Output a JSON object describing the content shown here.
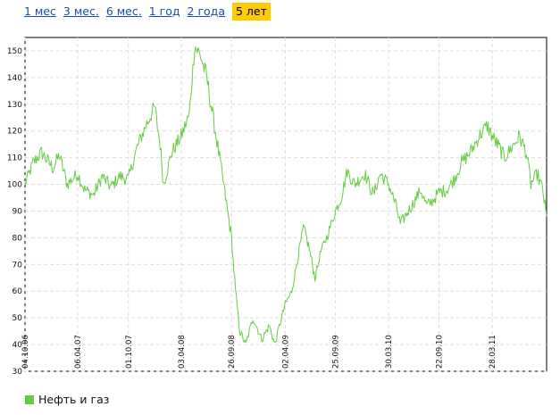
{
  "period_tabs": [
    {
      "label": "1 мес",
      "active": false
    },
    {
      "label": "3 мес.",
      "active": false
    },
    {
      "label": "6 мес.",
      "active": false
    },
    {
      "label": "1 год",
      "active": false
    },
    {
      "label": "2 года",
      "active": false
    },
    {
      "label": "5 лет",
      "active": true
    }
  ],
  "legend": {
    "label": "Нефть и газ",
    "color": "#66cc44"
  },
  "chart_data": {
    "type": "line",
    "title": "",
    "xlabel": "",
    "ylabel": "",
    "ylim": [
      30,
      155
    ],
    "yticks": [
      30,
      40,
      50,
      60,
      70,
      80,
      90,
      100,
      110,
      120,
      130,
      140,
      150
    ],
    "xlim": [
      "2006-10-04",
      "2011-10-04"
    ],
    "xticks": [
      "04.10.06",
      "06.04.07",
      "01.10.07",
      "03.04.08",
      "26.09.08",
      "02.04.09",
      "25.09.09",
      "30.03.10",
      "22.09.10",
      "28.03.11"
    ],
    "grid": true,
    "series": [
      {
        "name": "Нефть и газ",
        "color": "#66cc44",
        "points": [
          [
            "2006-10-04",
            100
          ],
          [
            "2006-11-01",
            108
          ],
          [
            "2006-12-01",
            112
          ],
          [
            "2007-01-10",
            106
          ],
          [
            "2007-02-01",
            111
          ],
          [
            "2007-03-01",
            100
          ],
          [
            "2007-04-06",
            104
          ],
          [
            "2007-05-01",
            98
          ],
          [
            "2007-06-01",
            96
          ],
          [
            "2007-07-01",
            103
          ],
          [
            "2007-08-01",
            99
          ],
          [
            "2007-09-01",
            103
          ],
          [
            "2007-10-01",
            102
          ],
          [
            "2007-11-01",
            114
          ],
          [
            "2007-12-01",
            122
          ],
          [
            "2008-01-01",
            129
          ],
          [
            "2008-01-20",
            115
          ],
          [
            "2008-02-01",
            100
          ],
          [
            "2008-03-01",
            112
          ],
          [
            "2008-04-03",
            118
          ],
          [
            "2008-05-01",
            126
          ],
          [
            "2008-05-20",
            152
          ],
          [
            "2008-06-10",
            148
          ],
          [
            "2008-07-01",
            140
          ],
          [
            "2008-07-25",
            124
          ],
          [
            "2008-08-15",
            110
          ],
          [
            "2008-09-05",
            95
          ],
          [
            "2008-09-26",
            80
          ],
          [
            "2008-10-10",
            60
          ],
          [
            "2008-10-25",
            45
          ],
          [
            "2008-11-15",
            40
          ],
          [
            "2008-12-10",
            50
          ],
          [
            "2009-01-10",
            42
          ],
          [
            "2009-02-05",
            47
          ],
          [
            "2009-02-25",
            40
          ],
          [
            "2009-03-15",
            48
          ],
          [
            "2009-04-02",
            55
          ],
          [
            "2009-04-25",
            60
          ],
          [
            "2009-05-15",
            72
          ],
          [
            "2009-06-05",
            84
          ],
          [
            "2009-06-25",
            76
          ],
          [
            "2009-07-15",
            65
          ],
          [
            "2009-08-05",
            75
          ],
          [
            "2009-08-25",
            80
          ],
          [
            "2009-09-25",
            90
          ],
          [
            "2009-10-15",
            95
          ],
          [
            "2009-11-05",
            105
          ],
          [
            "2009-12-01",
            100
          ],
          [
            "2010-01-05",
            104
          ],
          [
            "2010-02-05",
            96
          ],
          [
            "2010-03-01",
            104
          ],
          [
            "2010-03-30",
            100
          ],
          [
            "2010-04-25",
            92
          ],
          [
            "2010-05-10",
            85
          ],
          [
            "2010-06-01",
            89
          ],
          [
            "2010-06-25",
            93
          ],
          [
            "2010-07-20",
            98
          ],
          [
            "2010-08-10",
            92
          ],
          [
            "2010-09-01",
            94
          ],
          [
            "2010-09-22",
            97
          ],
          [
            "2010-10-20",
            98
          ],
          [
            "2010-11-15",
            102
          ],
          [
            "2010-12-10",
            108
          ],
          [
            "2011-01-10",
            112
          ],
          [
            "2011-02-10",
            118
          ],
          [
            "2011-03-10",
            122
          ],
          [
            "2011-03-28",
            118
          ],
          [
            "2011-04-20",
            114
          ],
          [
            "2011-05-10",
            110
          ],
          [
            "2011-06-05",
            114
          ],
          [
            "2011-07-01",
            118
          ],
          [
            "2011-07-25",
            112
          ],
          [
            "2011-08-10",
            100
          ],
          [
            "2011-09-01",
            104
          ],
          [
            "2011-09-20",
            98
          ],
          [
            "2011-10-04",
            88
          ]
        ]
      }
    ]
  }
}
